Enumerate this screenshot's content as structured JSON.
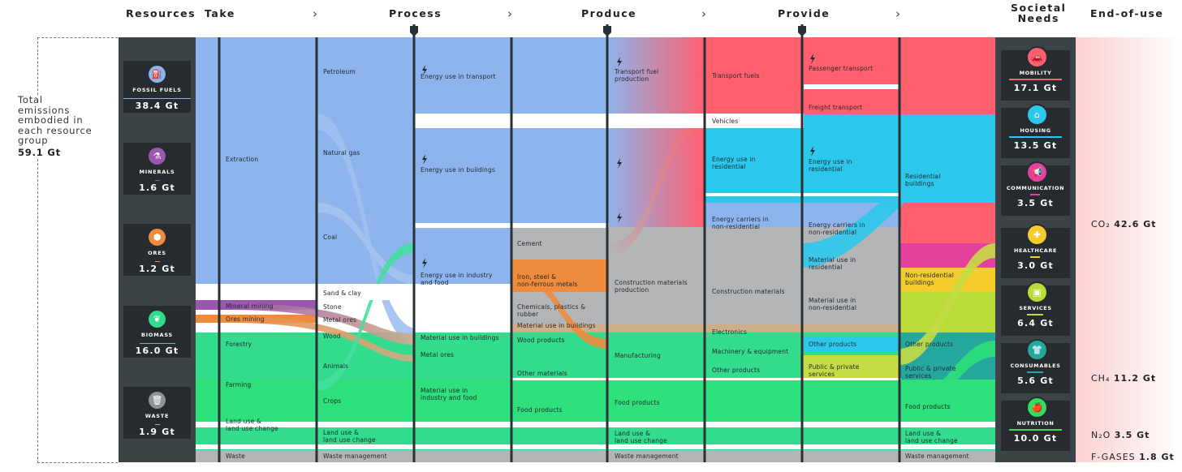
{
  "headers": {
    "resources": "Resources",
    "take": "Take",
    "process": "Process",
    "produce": "Produce",
    "provide": "Provide",
    "societal_needs_line1": "Societal",
    "societal_needs_line2": "Needs",
    "end_of_use": "End-of-use",
    "chevron": "›"
  },
  "total": {
    "lines": [
      "Total",
      "emissions",
      "embodied in",
      "each resource",
      "group"
    ],
    "value": "59.1 Gt"
  },
  "resources": [
    {
      "name": "FOSSIL FUELS",
      "value": "38.4 Gt",
      "color": "#8db4ec",
      "icon": "fuel-icon",
      "glyph": "⛽"
    },
    {
      "name": "MINERALS",
      "value": "1.6 Gt",
      "color": "#9a57b0",
      "icon": "flask-icon",
      "glyph": "⚗"
    },
    {
      "name": "ORES",
      "value": "1.2 Gt",
      "color": "#ef8b3d",
      "icon": "ore-icon",
      "glyph": "⬢"
    },
    {
      "name": "BIOMASS",
      "value": "16.0 Gt",
      "color": "#33dc8c",
      "icon": "leaf-icon",
      "glyph": "❦"
    },
    {
      "name": "WASTE",
      "value": "1.9 Gt",
      "color": "#a9adab",
      "icon": "bin-icon",
      "glyph": "🗑"
    }
  ],
  "needs": [
    {
      "name": "MOBILITY",
      "value": "17.1 Gt",
      "color": "#ff5f6d",
      "icon": "car-icon",
      "glyph": "🚗"
    },
    {
      "name": "HOUSING",
      "value": "13.5 Gt",
      "color": "#2cc8ec",
      "icon": "house-icon",
      "glyph": "⌂"
    },
    {
      "name": "COMMUNICATION",
      "value": "3.5 Gt",
      "color": "#e6409f",
      "icon": "megaphone-icon",
      "glyph": "📢"
    },
    {
      "name": "HEALTHCARE",
      "value": "3.0 Gt",
      "color": "#f4cc2c",
      "icon": "health-icon",
      "glyph": "✚"
    },
    {
      "name": "SERVICES",
      "value": "6.4 Gt",
      "color": "#b9dc36",
      "icon": "services-icon",
      "glyph": "▣"
    },
    {
      "name": "CONSUMABLES",
      "value": "5.6 Gt",
      "color": "#26a79e",
      "icon": "shirt-icon",
      "glyph": "👕"
    },
    {
      "name": "NUTRITION",
      "value": "10.0 Gt",
      "color": "#33dc5a",
      "icon": "apple-icon",
      "glyph": "🍎"
    }
  ],
  "end_of_use": [
    {
      "gas": "CO₂",
      "value": "42.6 Gt"
    },
    {
      "gas": "CH₄",
      "value": "11.2 Gt"
    },
    {
      "gas": "N₂O",
      "value": "3.5 Gt"
    },
    {
      "gas": "F-GASES",
      "value": "1.8 Gt"
    }
  ],
  "take_labels": {
    "extraction": "Extraction",
    "mineral_mining": "Mineral mining",
    "ores_mining": "Ores mining",
    "forestry": "Forestry",
    "farming": "Farming",
    "land_use_1": "Land use &",
    "land_use_2": "land use change",
    "waste": "Waste"
  },
  "col2_labels": {
    "petroleum": "Petroleum",
    "natural_gas": "Natural gas",
    "coal": "Coal",
    "sand_clay": "Sand & clay",
    "stone": "Stone",
    "metal_ores": "Metal ores",
    "wood": "Wood",
    "animals": "Animals",
    "crops": "Crops",
    "land_use_1": "Land use &",
    "land_use_2": "land use change",
    "waste_mgmt": "Waste management"
  },
  "process_labels": {
    "transport": "Energy use in transport",
    "buildings": "Energy use in buildings",
    "industry_1": "Energy use in industry",
    "industry_2": "and food",
    "mat_buildings": "Material use in buildings",
    "metal_ores": "Metal ores",
    "mat_industry_1": "Material use in",
    "mat_industry_2": "industry and food"
  },
  "col4_labels": {
    "cement": "Cement",
    "iron_1": "Iron, steel &",
    "iron_2": "non-ferrous metals",
    "chem_1": "Chemicals, plastics &",
    "chem_2": "rubber",
    "mat_buildings": "Material use in buildings",
    "wood_products": "Wood products",
    "other_materials": "Other materials",
    "food_products": "Food products"
  },
  "produce_labels": {
    "fuel_1": "Transport fuel",
    "fuel_2": "production",
    "constr_1": "Construction materials",
    "constr_2": "production",
    "manufacturing": "Manufacturing",
    "food_products": "Food products",
    "land_use_1": "Land use &",
    "land_use_2": "land use change",
    "waste_mgmt": "Waste management"
  },
  "col6_labels": {
    "transport_fuels": "Transport fuels",
    "vehicles": "Vehicles",
    "res_1": "Energy use in",
    "res_2": "residential",
    "carriers_1": "Energy carriers in",
    "carriers_2": "non-residential",
    "constr_materials": "Construction materials",
    "electronics": "Electronics",
    "machinery": "Machinery & equipment",
    "other_products": "Other products"
  },
  "provide_labels": {
    "passenger": "Passenger transport",
    "freight": "Freight transport",
    "res_1": "Energy use in",
    "res_2": "residential",
    "carriers_1": "Energy carriers in",
    "carriers_2": "non-residential",
    "matres_1": "Material use in",
    "matres_2": "residential",
    "matnon_1": "Material use in",
    "matnon_2": "non-residential",
    "other_products": "Other products",
    "public_1": "Public & private",
    "public_2": "services"
  },
  "col8_labels": {
    "resb_1": "Residential",
    "resb_2": "buildings",
    "nonres_1": "Non-residential",
    "nonres_2": "buildings",
    "other_products": "Other products",
    "public_1": "Public & private",
    "public_2": "services",
    "food_products": "Food products",
    "land_use_1": "Land use &",
    "land_use_2": "land use change",
    "waste_mgmt": "Waste management"
  },
  "colors": {
    "fossil": "#8db4ec",
    "mobility": "#ff5f6d",
    "housing": "#2cc8ec",
    "grey": "#b3b5b6",
    "tan": "#cfae8a",
    "biomass": "#33dc8c",
    "green": "#2ee07a",
    "panel": "#3c4347",
    "card": "#252b2f"
  }
}
